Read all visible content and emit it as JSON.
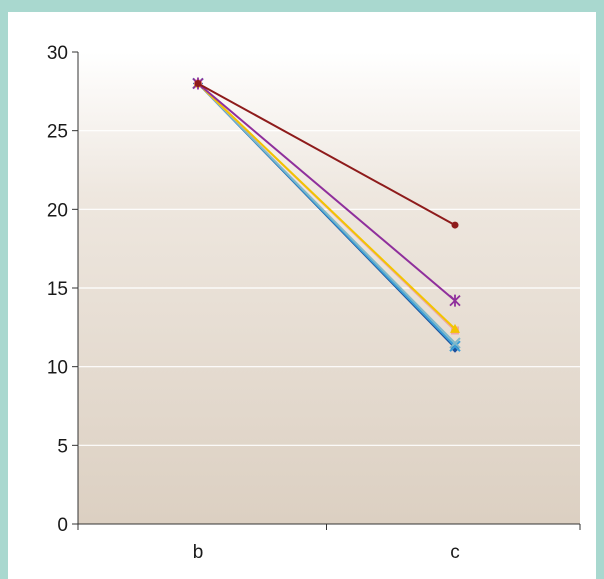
{
  "chart_data": {
    "type": "line",
    "categories": [
      "b",
      "c"
    ],
    "series": [
      {
        "values": [
          28,
          19.0
        ],
        "color": "#8e1b1b",
        "marker": "circle"
      },
      {
        "values": [
          28,
          14.2
        ],
        "color": "#8f2f9c",
        "marker": "star"
      },
      {
        "values": [
          28,
          12.4
        ],
        "color": "#f2c400",
        "marker": "triangle"
      },
      {
        "values": [
          28,
          12.3
        ],
        "color": "#f0a6a6",
        "marker": "square"
      },
      {
        "values": [
          28,
          11.5
        ],
        "color": "#7fb8c9",
        "marker": "x"
      },
      {
        "values": [
          28,
          11.3
        ],
        "color": "#3a9ed6",
        "marker": "x"
      },
      {
        "values": [
          28,
          11.2
        ],
        "color": "#1b4f9c",
        "marker": "diamond"
      }
    ],
    "yticks": [
      "0",
      "5",
      "10",
      "15",
      "20",
      "25",
      "30"
    ],
    "ylim": [
      0,
      30
    ],
    "title": "",
    "xlabel": "",
    "ylabel": "",
    "grid": true,
    "legend": "none",
    "colors": {
      "frame": "#a9d8cf",
      "plot_top": "#ffffff",
      "plot_bottom": "#dcd0c2",
      "gridline": "#ffffff",
      "axis": "#333333"
    }
  }
}
